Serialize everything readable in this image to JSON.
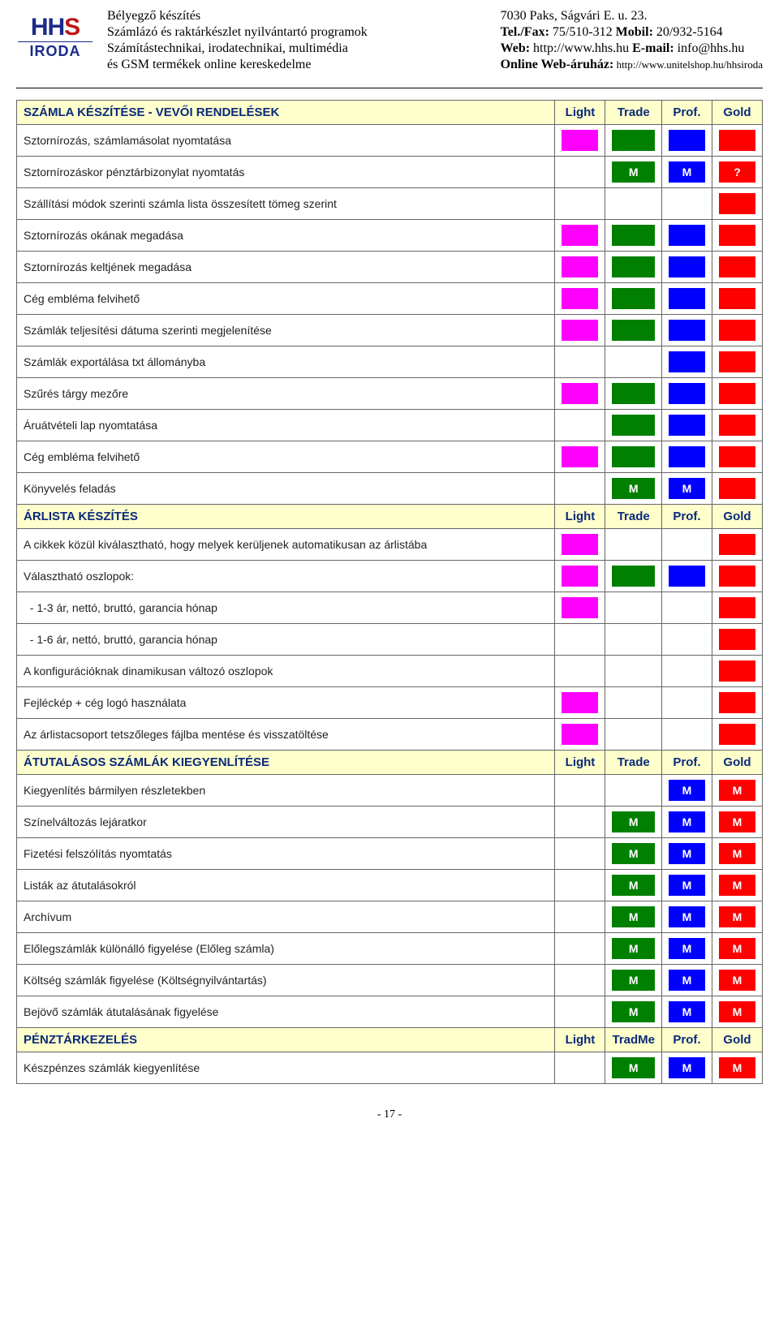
{
  "header": {
    "left_lines": [
      "Bélyegző készítés",
      "Számlázó és raktárkészlet nyilvántartó programok",
      "Számítástechnikai, irodatechnikai, multimédia",
      "és GSM termékek online kereskedelme"
    ],
    "right_lines": [
      {
        "plain": "7030 Paks, Ságvári E. u. 23."
      },
      {
        "bold": "Tel./Fax:",
        "rest": " 75/510-312 ",
        "bold2": "Mobil:",
        "rest2": " 20/932-5164"
      },
      {
        "bold": "Web:",
        "rest": " http://www.hhs.hu ",
        "bold2": "E-mail:",
        "rest2": " info@hhs.hu"
      },
      {
        "bold": "Online Web-áruház:",
        "small": " http://www.unitelshop.hu/hhsiroda"
      }
    ]
  },
  "colors": {
    "magenta": "#ff00ff",
    "green": "#008000",
    "blue": "#0000ff",
    "red": "#ff0000",
    "white": "#ffffff",
    "header_bg": "#ffffcc",
    "header_text": "#0a2a7a"
  },
  "sections": [
    {
      "title": "SZÁMLA KÉSZÍTÉSE - VEVŐI RENDELÉSEK",
      "cols": [
        "Light",
        "Trade",
        "Prof.",
        "Gold"
      ],
      "rows": [
        {
          "label": "Sztornírozás, számlamásolat nyomtatása",
          "cells": [
            {
              "c": "magenta"
            },
            {
              "c": "green"
            },
            {
              "c": "blue"
            },
            {
              "c": "red"
            }
          ]
        },
        {
          "label": "Sztornírozáskor pénztárbizonylat nyomtatás",
          "cells": [
            {
              "c": "white"
            },
            {
              "c": "green",
              "t": "M"
            },
            {
              "c": "blue",
              "t": "M"
            },
            {
              "c": "red",
              "t": "?"
            }
          ]
        },
        {
          "label": "Szállítási módok szerinti számla lista összesített tömeg szerint",
          "cells": [
            {
              "c": "white"
            },
            {
              "c": "white"
            },
            {
              "c": "white"
            },
            {
              "c": "red"
            }
          ]
        },
        {
          "label": "Sztornírozás okának megadása",
          "cells": [
            {
              "c": "magenta"
            },
            {
              "c": "green"
            },
            {
              "c": "blue"
            },
            {
              "c": "red"
            }
          ]
        },
        {
          "label": "Sztornírozás keltjének megadása",
          "cells": [
            {
              "c": "magenta"
            },
            {
              "c": "green"
            },
            {
              "c": "blue"
            },
            {
              "c": "red"
            }
          ]
        },
        {
          "label": "Cég embléma felvihető",
          "cells": [
            {
              "c": "magenta"
            },
            {
              "c": "green"
            },
            {
              "c": "blue"
            },
            {
              "c": "red"
            }
          ]
        },
        {
          "label": "Számlák teljesítési dátuma szerinti megjelenítése",
          "cells": [
            {
              "c": "magenta"
            },
            {
              "c": "green"
            },
            {
              "c": "blue"
            },
            {
              "c": "red"
            }
          ]
        },
        {
          "label": "Számlák exportálása txt állományba",
          "cells": [
            {
              "c": "white"
            },
            {
              "c": "white"
            },
            {
              "c": "blue"
            },
            {
              "c": "red"
            }
          ]
        },
        {
          "label": "Szűrés tárgy mezőre",
          "cells": [
            {
              "c": "magenta"
            },
            {
              "c": "green"
            },
            {
              "c": "blue"
            },
            {
              "c": "red"
            }
          ]
        },
        {
          "label": "Áruátvételi lap nyomtatása",
          "cells": [
            {
              "c": "white"
            },
            {
              "c": "green"
            },
            {
              "c": "blue"
            },
            {
              "c": "red"
            }
          ]
        },
        {
          "label": "Cég embléma felvihető",
          "cells": [
            {
              "c": "magenta"
            },
            {
              "c": "green"
            },
            {
              "c": "blue"
            },
            {
              "c": "red"
            }
          ]
        },
        {
          "label": "Könyvelés feladás",
          "cells": [
            {
              "c": "white"
            },
            {
              "c": "green",
              "t": "M"
            },
            {
              "c": "blue",
              "t": "M"
            },
            {
              "c": "red"
            }
          ]
        }
      ]
    },
    {
      "title": "ÁRLISTA KÉSZÍTÉS",
      "cols": [
        "Light",
        "Trade",
        "Prof.",
        "Gold"
      ],
      "rows": [
        {
          "label": "A cikkek közül kiválasztható, hogy melyek kerüljenek automatikusan az árlistába",
          "cells": [
            {
              "c": "magenta"
            },
            {
              "c": "white"
            },
            {
              "c": "white"
            },
            {
              "c": "red"
            }
          ]
        },
        {
          "label": "Választható oszlopok:",
          "cells": [
            {
              "c": "magenta"
            },
            {
              "c": "green"
            },
            {
              "c": "blue"
            },
            {
              "c": "red"
            }
          ]
        },
        {
          "label": "  - 1-3 ár, nettó, bruttó, garancia hónap",
          "cells": [
            {
              "c": "magenta"
            },
            {
              "c": "white"
            },
            {
              "c": "white"
            },
            {
              "c": "red"
            }
          ]
        },
        {
          "label": "  - 1-6 ár, nettó, bruttó, garancia hónap",
          "cells": [
            {
              "c": "white"
            },
            {
              "c": "white"
            },
            {
              "c": "white"
            },
            {
              "c": "red"
            }
          ]
        },
        {
          "label": "A konfigurációknak dinamikusan változó oszlopok",
          "cells": [
            {
              "c": "white"
            },
            {
              "c": "white"
            },
            {
              "c": "white"
            },
            {
              "c": "red"
            }
          ]
        },
        {
          "label": "Fejléckép + cég logó használata",
          "cells": [
            {
              "c": "magenta"
            },
            {
              "c": "white"
            },
            {
              "c": "white"
            },
            {
              "c": "red"
            }
          ]
        },
        {
          "label": "Az árlistacsoport tetszőleges fájlba mentése és visszatöltése",
          "cells": [
            {
              "c": "magenta"
            },
            {
              "c": "white"
            },
            {
              "c": "white"
            },
            {
              "c": "red"
            }
          ]
        }
      ]
    },
    {
      "title": "ÁTUTALÁSOS SZÁMLÁK KIEGYENLÍTÉSE",
      "cols": [
        "Light",
        "Trade",
        "Prof.",
        "Gold"
      ],
      "rows": [
        {
          "label": "Kiegyenlítés bármilyen részletekben",
          "cells": [
            {
              "c": "white"
            },
            {
              "c": "white"
            },
            {
              "c": "blue",
              "t": "M"
            },
            {
              "c": "red",
              "t": "M"
            }
          ]
        },
        {
          "label": "Színelváltozás lejáratkor",
          "cells": [
            {
              "c": "white"
            },
            {
              "c": "green",
              "t": "M"
            },
            {
              "c": "blue",
              "t": "M"
            },
            {
              "c": "red",
              "t": "M"
            }
          ]
        },
        {
          "label": "Fizetési felszólítás nyomtatás",
          "cells": [
            {
              "c": "white"
            },
            {
              "c": "green",
              "t": "M"
            },
            {
              "c": "blue",
              "t": "M"
            },
            {
              "c": "red",
              "t": "M"
            }
          ]
        },
        {
          "label": "Listák az átutalásokról",
          "cells": [
            {
              "c": "white"
            },
            {
              "c": "green",
              "t": "M"
            },
            {
              "c": "blue",
              "t": "M"
            },
            {
              "c": "red",
              "t": "M"
            }
          ]
        },
        {
          "label": "Archívum",
          "cells": [
            {
              "c": "white"
            },
            {
              "c": "green",
              "t": "M"
            },
            {
              "c": "blue",
              "t": "M"
            },
            {
              "c": "red",
              "t": "M"
            }
          ]
        },
        {
          "label": "Előlegszámlák különálló figyelése (Előleg számla)",
          "cells": [
            {
              "c": "white"
            },
            {
              "c": "green",
              "t": "M"
            },
            {
              "c": "blue",
              "t": "M"
            },
            {
              "c": "red",
              "t": "M"
            }
          ]
        },
        {
          "label": "Költség számlák figyelése (Költségnyilvántartás)",
          "cells": [
            {
              "c": "white"
            },
            {
              "c": "green",
              "t": "M"
            },
            {
              "c": "blue",
              "t": "M"
            },
            {
              "c": "red",
              "t": "M"
            }
          ]
        },
        {
          "label": "Bejövő számlák átutalásának figyelése",
          "cells": [
            {
              "c": "white"
            },
            {
              "c": "green",
              "t": "M"
            },
            {
              "c": "blue",
              "t": "M"
            },
            {
              "c": "red",
              "t": "M"
            }
          ]
        }
      ]
    },
    {
      "title": "PÉNZTÁRKEZELÉS",
      "cols": [
        "Light",
        "TradMe",
        "Prof.",
        "Gold"
      ],
      "rows": [
        {
          "label": "Készpénzes számlák kiegyenlítése",
          "cells": [
            {
              "c": "white"
            },
            {
              "c": "green",
              "t": "M"
            },
            {
              "c": "blue",
              "t": "M"
            },
            {
              "c": "red",
              "t": "M"
            }
          ]
        }
      ]
    }
  ],
  "page_number": "- 17 -"
}
